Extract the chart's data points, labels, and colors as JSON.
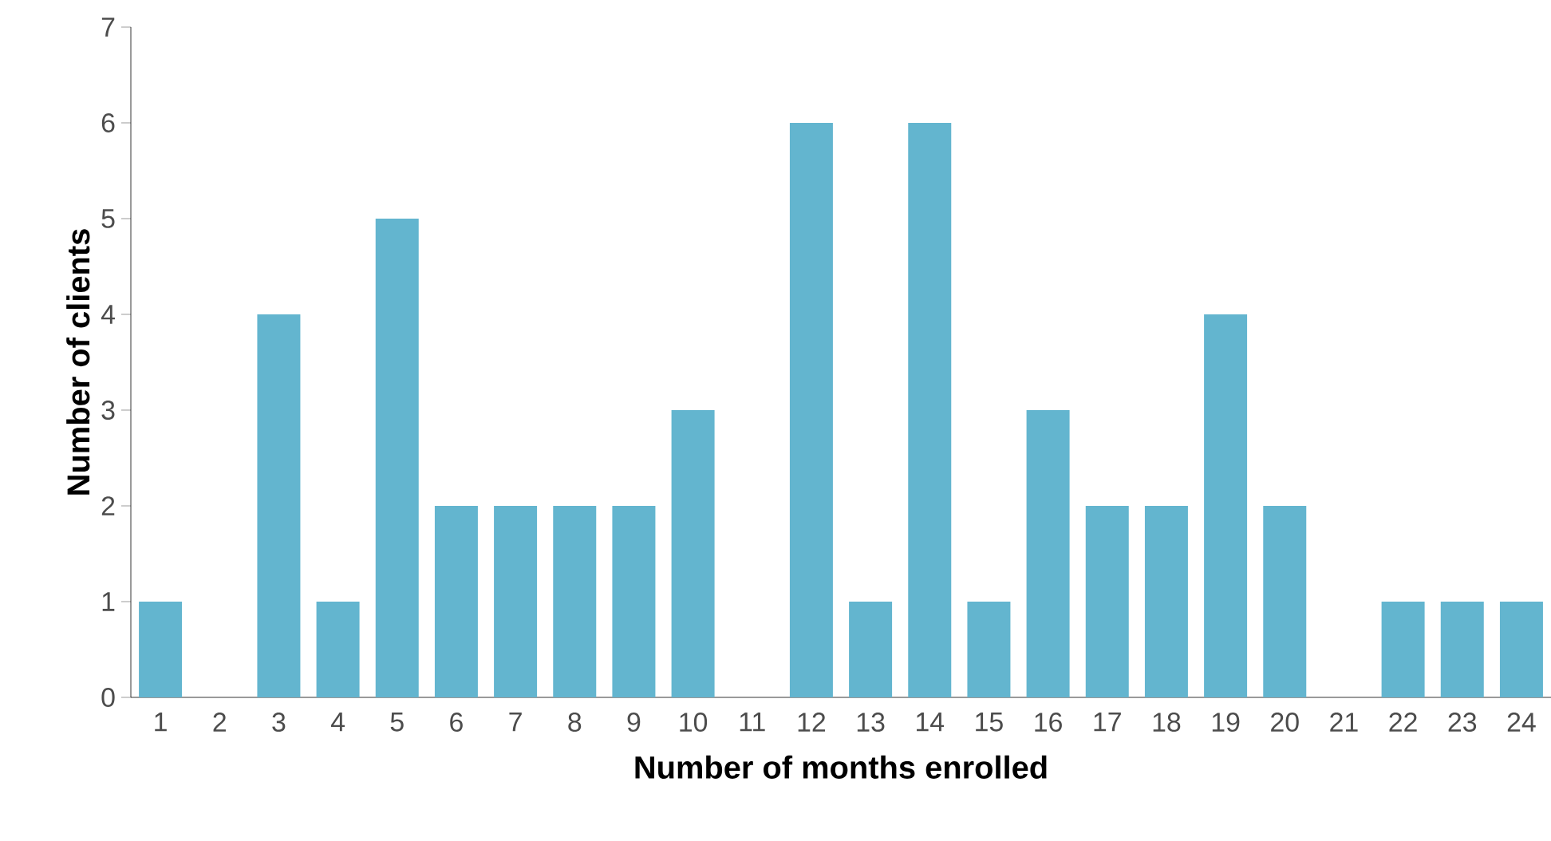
{
  "chart_data": {
    "type": "bar",
    "xlabel": "Number of months enrolled",
    "ylabel": "Number of clients",
    "categories": [
      "1",
      "2",
      "3",
      "4",
      "5",
      "6",
      "7",
      "8",
      "9",
      "10",
      "11",
      "12",
      "13",
      "14",
      "15",
      "16",
      "17",
      "18",
      "19",
      "20",
      "21",
      "22",
      "23",
      "24"
    ],
    "values": [
      1,
      0,
      4,
      1,
      5,
      2,
      2,
      2,
      2,
      3,
      0,
      6,
      1,
      6,
      1,
      3,
      2,
      2,
      4,
      2,
      0,
      1,
      1,
      1
    ],
    "color": "#63b5cf",
    "ylim": [
      0,
      7
    ],
    "yticks": [
      0,
      1,
      2,
      3,
      4,
      5,
      6,
      7
    ]
  }
}
